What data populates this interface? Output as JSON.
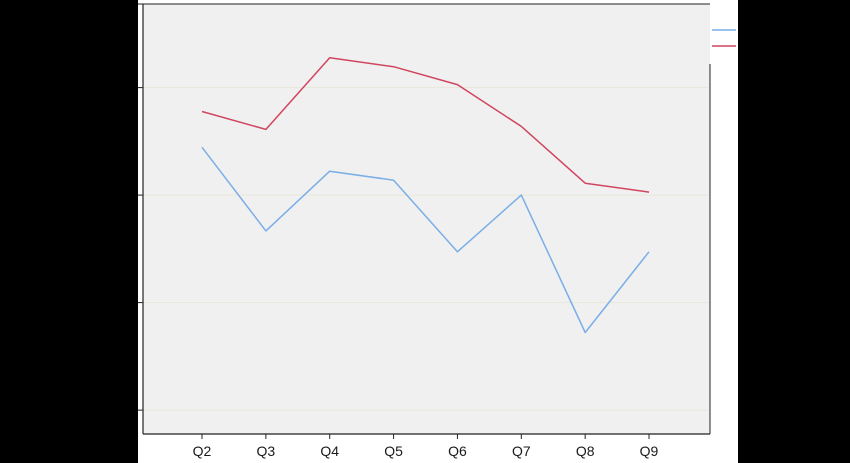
{
  "chart_data": {
    "type": "line",
    "categories": [
      "Q2",
      "Q3",
      "Q4",
      "Q5",
      "Q6",
      "Q7",
      "Q8",
      "Q9"
    ],
    "series": [
      {
        "color": "#7AAEE8",
        "values": [
          60.0,
          46.0,
          56.0,
          54.5,
          42.5,
          52.0,
          29.0,
          42.5
        ]
      },
      {
        "color": "#D0455F",
        "values": [
          66.0,
          63.0,
          75.0,
          73.5,
          70.5,
          63.5,
          54.0,
          52.5
        ]
      }
    ],
    "ylim": [
      12,
      84
    ],
    "y_gridlines": [
      16,
      34,
      52,
      70,
      84
    ],
    "grid": true,
    "legend_position": "top-right",
    "colors": {
      "page_background": "#000000",
      "figure_background": "#FFFFFF",
      "plot_background": "#F0F0F0",
      "gridline": "#E8E8D8",
      "axis": "#222222"
    }
  }
}
